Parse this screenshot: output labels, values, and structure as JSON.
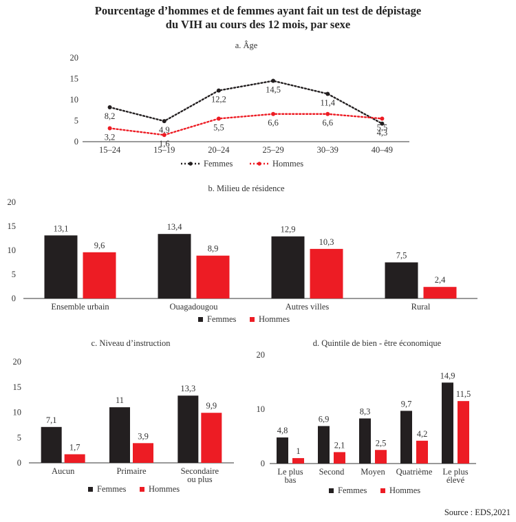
{
  "title_lines": [
    "Pourcentage d’hommes et de femmes ayant fait un test de dépistage",
    "du VIH au cours des 12 mois, par sexe"
  ],
  "source": "Source : EDS,2021",
  "colors": {
    "femmes": "#231f20",
    "hommes": "#ed1c24"
  },
  "legend_labels": [
    "Femmes",
    "Hommes"
  ],
  "chart_data": [
    {
      "type": "line",
      "title": "a. Âge",
      "categories": [
        "15–24",
        "15–19",
        "20–24",
        "25–29",
        "30–39",
        "40–49"
      ],
      "ylim": [
        0,
        20
      ],
      "yticks": [
        0,
        5,
        10,
        15,
        20
      ],
      "series": [
        {
          "name": "Femmes",
          "values": [
            8.2,
            4.9,
            12.2,
            14.5,
            11.4,
            4.3
          ],
          "labels": [
            "8,2",
            "4,9",
            "12,2",
            "14,5",
            "11,4",
            "4,3"
          ]
        },
        {
          "name": "Hommes",
          "values": [
            3.2,
            1.6,
            5.5,
            6.6,
            6.6,
            5.5
          ],
          "labels": [
            "3,2",
            "1,6",
            "5,5",
            "6,6",
            "6,6",
            "5,5"
          ]
        }
      ],
      "legend": "bottom",
      "grid": false
    },
    {
      "type": "bar",
      "title": "b. Milieu de résidence",
      "categories": [
        "Ensemble urbain",
        "Ouagadougou",
        "Autres villes",
        "Rural"
      ],
      "ylim": [
        0,
        20
      ],
      "yticks": [
        0,
        5,
        10,
        15,
        20
      ],
      "series": [
        {
          "name": "Femmes",
          "values": [
            13.1,
            13.4,
            12.9,
            7.5
          ],
          "labels": [
            "13,1",
            "13,4",
            "12,9",
            "7,5"
          ]
        },
        {
          "name": "Hommes",
          "values": [
            9.6,
            8.9,
            10.3,
            2.4
          ],
          "labels": [
            "9,6",
            "8,9",
            "10,3",
            "2,4"
          ]
        }
      ],
      "legend": "bottom",
      "grid": false
    },
    {
      "type": "bar",
      "title": "c. Niveau d’instruction",
      "categories": [
        "Aucun",
        "Primaire",
        "Secondaire ou plus"
      ],
      "ylim": [
        0,
        20
      ],
      "yticks": [
        0,
        5,
        10,
        15,
        20
      ],
      "series": [
        {
          "name": "Femmes",
          "values": [
            7.1,
            11,
            13.3
          ],
          "labels": [
            "7,1",
            "11",
            "13,3"
          ]
        },
        {
          "name": "Hommes",
          "values": [
            1.7,
            3.9,
            9.9
          ],
          "labels": [
            "1,7",
            "3,9",
            "9,9"
          ]
        }
      ],
      "legend": "bottom",
      "grid": false
    },
    {
      "type": "bar",
      "title": "d. Quintile de bien - être économique",
      "categories": [
        "Le plus bas",
        "Second",
        "Moyen",
        "Quatrième",
        "Le plus élevé"
      ],
      "ylim": [
        0,
        20
      ],
      "yticks": [
        0,
        10,
        20
      ],
      "series": [
        {
          "name": "Femmes",
          "values": [
            4.8,
            6.9,
            8.3,
            9.7,
            14.9
          ],
          "labels": [
            "4,8",
            "6,9",
            "8,3",
            "9,7",
            "14,9"
          ]
        },
        {
          "name": "Hommes",
          "values": [
            1,
            2.1,
            2.5,
            4.2,
            11.5
          ],
          "labels": [
            "1",
            "2,1",
            "2,5",
            "4,2",
            "11,5"
          ]
        }
      ],
      "legend": "bottom",
      "grid": false
    }
  ]
}
